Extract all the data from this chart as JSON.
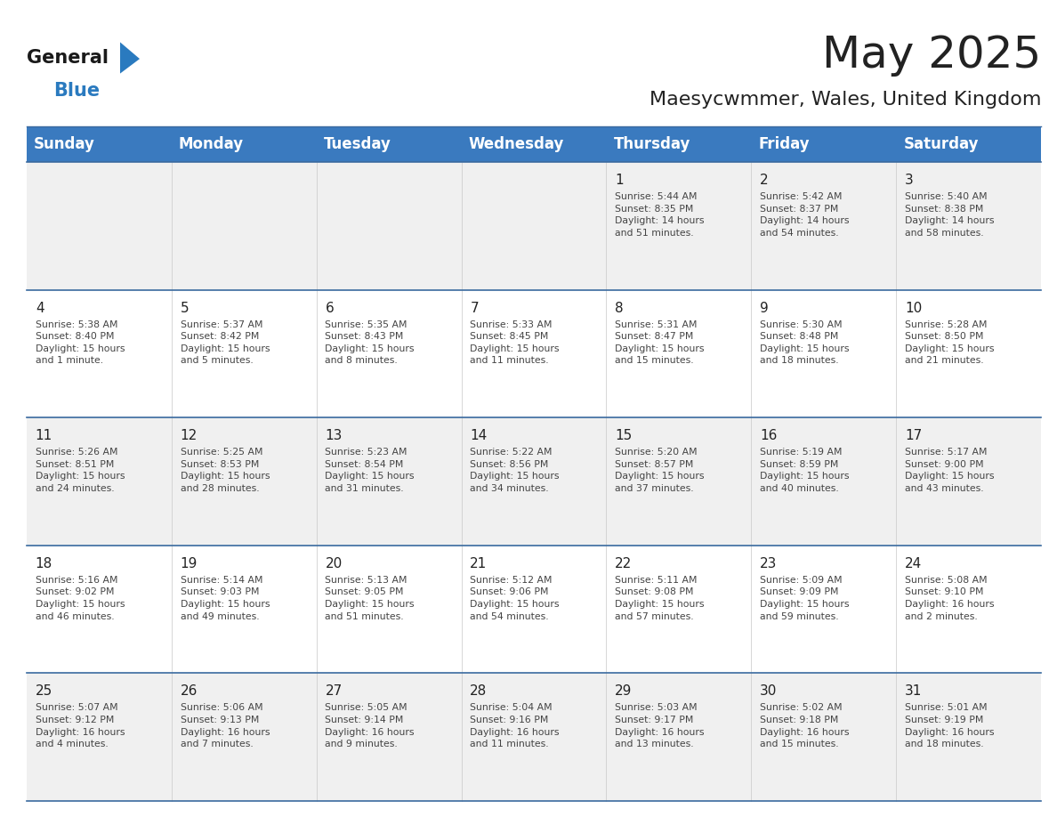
{
  "title": "May 2025",
  "subtitle": "Maesycwmmer, Wales, United Kingdom",
  "header_bg": "#3a7abf",
  "header_text_color": "#ffffff",
  "row_bg_odd": "#f0f0f0",
  "row_bg_even": "#ffffff",
  "day_headers": [
    "Sunday",
    "Monday",
    "Tuesday",
    "Wednesday",
    "Thursday",
    "Friday",
    "Saturday"
  ],
  "weeks": [
    [
      {
        "day": "",
        "info": ""
      },
      {
        "day": "",
        "info": ""
      },
      {
        "day": "",
        "info": ""
      },
      {
        "day": "",
        "info": ""
      },
      {
        "day": "1",
        "info": "Sunrise: 5:44 AM\nSunset: 8:35 PM\nDaylight: 14 hours\nand 51 minutes."
      },
      {
        "day": "2",
        "info": "Sunrise: 5:42 AM\nSunset: 8:37 PM\nDaylight: 14 hours\nand 54 minutes."
      },
      {
        "day": "3",
        "info": "Sunrise: 5:40 AM\nSunset: 8:38 PM\nDaylight: 14 hours\nand 58 minutes."
      }
    ],
    [
      {
        "day": "4",
        "info": "Sunrise: 5:38 AM\nSunset: 8:40 PM\nDaylight: 15 hours\nand 1 minute."
      },
      {
        "day": "5",
        "info": "Sunrise: 5:37 AM\nSunset: 8:42 PM\nDaylight: 15 hours\nand 5 minutes."
      },
      {
        "day": "6",
        "info": "Sunrise: 5:35 AM\nSunset: 8:43 PM\nDaylight: 15 hours\nand 8 minutes."
      },
      {
        "day": "7",
        "info": "Sunrise: 5:33 AM\nSunset: 8:45 PM\nDaylight: 15 hours\nand 11 minutes."
      },
      {
        "day": "8",
        "info": "Sunrise: 5:31 AM\nSunset: 8:47 PM\nDaylight: 15 hours\nand 15 minutes."
      },
      {
        "day": "9",
        "info": "Sunrise: 5:30 AM\nSunset: 8:48 PM\nDaylight: 15 hours\nand 18 minutes."
      },
      {
        "day": "10",
        "info": "Sunrise: 5:28 AM\nSunset: 8:50 PM\nDaylight: 15 hours\nand 21 minutes."
      }
    ],
    [
      {
        "day": "11",
        "info": "Sunrise: 5:26 AM\nSunset: 8:51 PM\nDaylight: 15 hours\nand 24 minutes."
      },
      {
        "day": "12",
        "info": "Sunrise: 5:25 AM\nSunset: 8:53 PM\nDaylight: 15 hours\nand 28 minutes."
      },
      {
        "day": "13",
        "info": "Sunrise: 5:23 AM\nSunset: 8:54 PM\nDaylight: 15 hours\nand 31 minutes."
      },
      {
        "day": "14",
        "info": "Sunrise: 5:22 AM\nSunset: 8:56 PM\nDaylight: 15 hours\nand 34 minutes."
      },
      {
        "day": "15",
        "info": "Sunrise: 5:20 AM\nSunset: 8:57 PM\nDaylight: 15 hours\nand 37 minutes."
      },
      {
        "day": "16",
        "info": "Sunrise: 5:19 AM\nSunset: 8:59 PM\nDaylight: 15 hours\nand 40 minutes."
      },
      {
        "day": "17",
        "info": "Sunrise: 5:17 AM\nSunset: 9:00 PM\nDaylight: 15 hours\nand 43 minutes."
      }
    ],
    [
      {
        "day": "18",
        "info": "Sunrise: 5:16 AM\nSunset: 9:02 PM\nDaylight: 15 hours\nand 46 minutes."
      },
      {
        "day": "19",
        "info": "Sunrise: 5:14 AM\nSunset: 9:03 PM\nDaylight: 15 hours\nand 49 minutes."
      },
      {
        "day": "20",
        "info": "Sunrise: 5:13 AM\nSunset: 9:05 PM\nDaylight: 15 hours\nand 51 minutes."
      },
      {
        "day": "21",
        "info": "Sunrise: 5:12 AM\nSunset: 9:06 PM\nDaylight: 15 hours\nand 54 minutes."
      },
      {
        "day": "22",
        "info": "Sunrise: 5:11 AM\nSunset: 9:08 PM\nDaylight: 15 hours\nand 57 minutes."
      },
      {
        "day": "23",
        "info": "Sunrise: 5:09 AM\nSunset: 9:09 PM\nDaylight: 15 hours\nand 59 minutes."
      },
      {
        "day": "24",
        "info": "Sunrise: 5:08 AM\nSunset: 9:10 PM\nDaylight: 16 hours\nand 2 minutes."
      }
    ],
    [
      {
        "day": "25",
        "info": "Sunrise: 5:07 AM\nSunset: 9:12 PM\nDaylight: 16 hours\nand 4 minutes."
      },
      {
        "day": "26",
        "info": "Sunrise: 5:06 AM\nSunset: 9:13 PM\nDaylight: 16 hours\nand 7 minutes."
      },
      {
        "day": "27",
        "info": "Sunrise: 5:05 AM\nSunset: 9:14 PM\nDaylight: 16 hours\nand 9 minutes."
      },
      {
        "day": "28",
        "info": "Sunrise: 5:04 AM\nSunset: 9:16 PM\nDaylight: 16 hours\nand 11 minutes."
      },
      {
        "day": "29",
        "info": "Sunrise: 5:03 AM\nSunset: 9:17 PM\nDaylight: 16 hours\nand 13 minutes."
      },
      {
        "day": "30",
        "info": "Sunrise: 5:02 AM\nSunset: 9:18 PM\nDaylight: 16 hours\nand 15 minutes."
      },
      {
        "day": "31",
        "info": "Sunrise: 5:01 AM\nSunset: 9:19 PM\nDaylight: 16 hours\nand 18 minutes."
      }
    ]
  ],
  "logo_color_general": "#1a1a1a",
  "logo_color_blue": "#2a7abf",
  "logo_triangle_color": "#2a7abf",
  "header_border_color": "#2a5a8f",
  "cell_border_color": "#3a6a9f",
  "text_color_dark": "#222222",
  "text_color_info": "#444444",
  "fig_width": 11.88,
  "fig_height": 9.18,
  "dpi": 100
}
